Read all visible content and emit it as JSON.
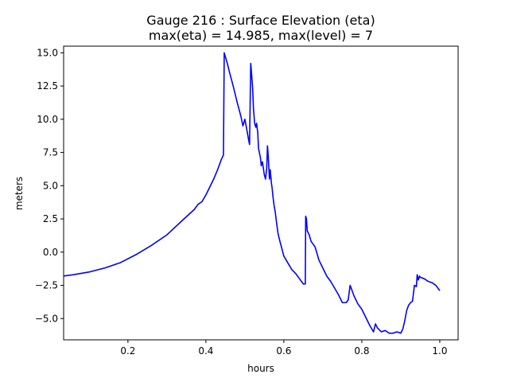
{
  "chart_data": {
    "type": "line",
    "title_line1": "Gauge 216 : Surface Elevation (eta)",
    "title_line2": "max(eta) =  14.985,    max(level) = 7",
    "xlabel": "hours",
    "ylabel": "meters",
    "xlim": [
      0.035,
      1.047
    ],
    "ylim": [
      -6.6,
      15.5
    ],
    "xticks": [
      0.2,
      0.4,
      0.6,
      0.8,
      1.0
    ],
    "xtick_labels": [
      "0.2",
      "0.4",
      "0.6",
      "0.8",
      "1.0"
    ],
    "yticks": [
      -5.0,
      -2.5,
      0.0,
      2.5,
      5.0,
      7.5,
      10.0,
      12.5,
      15.0
    ],
    "ytick_labels": [
      "−5.0",
      "−2.5",
      "0.0",
      "2.5",
      "5.0",
      "7.5",
      "10.0",
      "12.5",
      "15.0"
    ],
    "grid": false,
    "series": [
      {
        "name": "eta",
        "color": "#0000ff",
        "x": [
          0.035,
          0.06,
          0.1,
          0.14,
          0.18,
          0.22,
          0.26,
          0.3,
          0.34,
          0.37,
          0.38,
          0.39,
          0.4,
          0.41,
          0.42,
          0.43,
          0.44,
          0.445,
          0.447,
          0.449,
          0.452,
          0.455,
          0.46,
          0.47,
          0.48,
          0.49,
          0.495,
          0.5,
          0.505,
          0.51,
          0.512,
          0.515,
          0.517,
          0.52,
          0.522,
          0.525,
          0.528,
          0.53,
          0.533,
          0.535,
          0.54,
          0.542,
          0.545,
          0.548,
          0.55,
          0.553,
          0.556,
          0.558,
          0.56,
          0.563,
          0.565,
          0.568,
          0.57,
          0.572,
          0.575,
          0.578,
          0.58,
          0.585,
          0.59,
          0.6,
          0.61,
          0.62,
          0.63,
          0.64,
          0.65,
          0.655,
          0.656,
          0.658,
          0.66,
          0.665,
          0.67,
          0.68,
          0.69,
          0.7,
          0.71,
          0.72,
          0.73,
          0.74,
          0.75,
          0.76,
          0.765,
          0.77,
          0.78,
          0.79,
          0.8,
          0.81,
          0.82,
          0.83,
          0.835,
          0.84,
          0.85,
          0.86,
          0.87,
          0.88,
          0.89,
          0.9,
          0.905,
          0.91,
          0.915,
          0.92,
          0.925,
          0.93,
          0.935,
          0.94,
          0.942,
          0.945,
          0.948,
          0.95,
          0.96,
          0.97,
          0.98,
          0.99,
          1.0
        ],
        "y": [
          -1.8,
          -1.7,
          -1.5,
          -1.2,
          -0.8,
          -0.2,
          0.5,
          1.3,
          2.4,
          3.2,
          3.6,
          3.8,
          4.3,
          4.9,
          5.5,
          6.2,
          7.0,
          7.3,
          15.0,
          14.8,
          14.5,
          14.2,
          13.6,
          12.5,
          11.3,
          10.2,
          9.5,
          10.0,
          9.2,
          8.4,
          8.1,
          14.2,
          13.5,
          12.3,
          10.8,
          9.7,
          9.4,
          9.7,
          9.0,
          7.8,
          7.1,
          6.5,
          6.8,
          6.2,
          5.8,
          5.5,
          6.3,
          8.0,
          7.2,
          5.5,
          6.2,
          5.2,
          4.8,
          4.2,
          3.5,
          3.0,
          2.5,
          1.4,
          0.8,
          -0.3,
          -0.8,
          -1.3,
          -1.6,
          -2.0,
          -2.4,
          -2.4,
          2.7,
          2.5,
          1.6,
          1.3,
          0.8,
          0.4,
          -0.6,
          -1.2,
          -1.8,
          -2.2,
          -2.7,
          -3.2,
          -3.8,
          -3.8,
          -3.6,
          -2.5,
          -3.3,
          -3.9,
          -4.3,
          -4.9,
          -5.5,
          -6.0,
          -5.4,
          -5.7,
          -6.0,
          -5.9,
          -6.1,
          -6.1,
          -6.0,
          -6.1,
          -5.8,
          -5.2,
          -4.4,
          -4.0,
          -3.8,
          -3.7,
          -2.5,
          -2.6,
          -1.7,
          -2.1,
          -1.8,
          -1.9,
          -2.0,
          -2.2,
          -2.3,
          -2.5,
          -2.9
        ]
      }
    ]
  }
}
